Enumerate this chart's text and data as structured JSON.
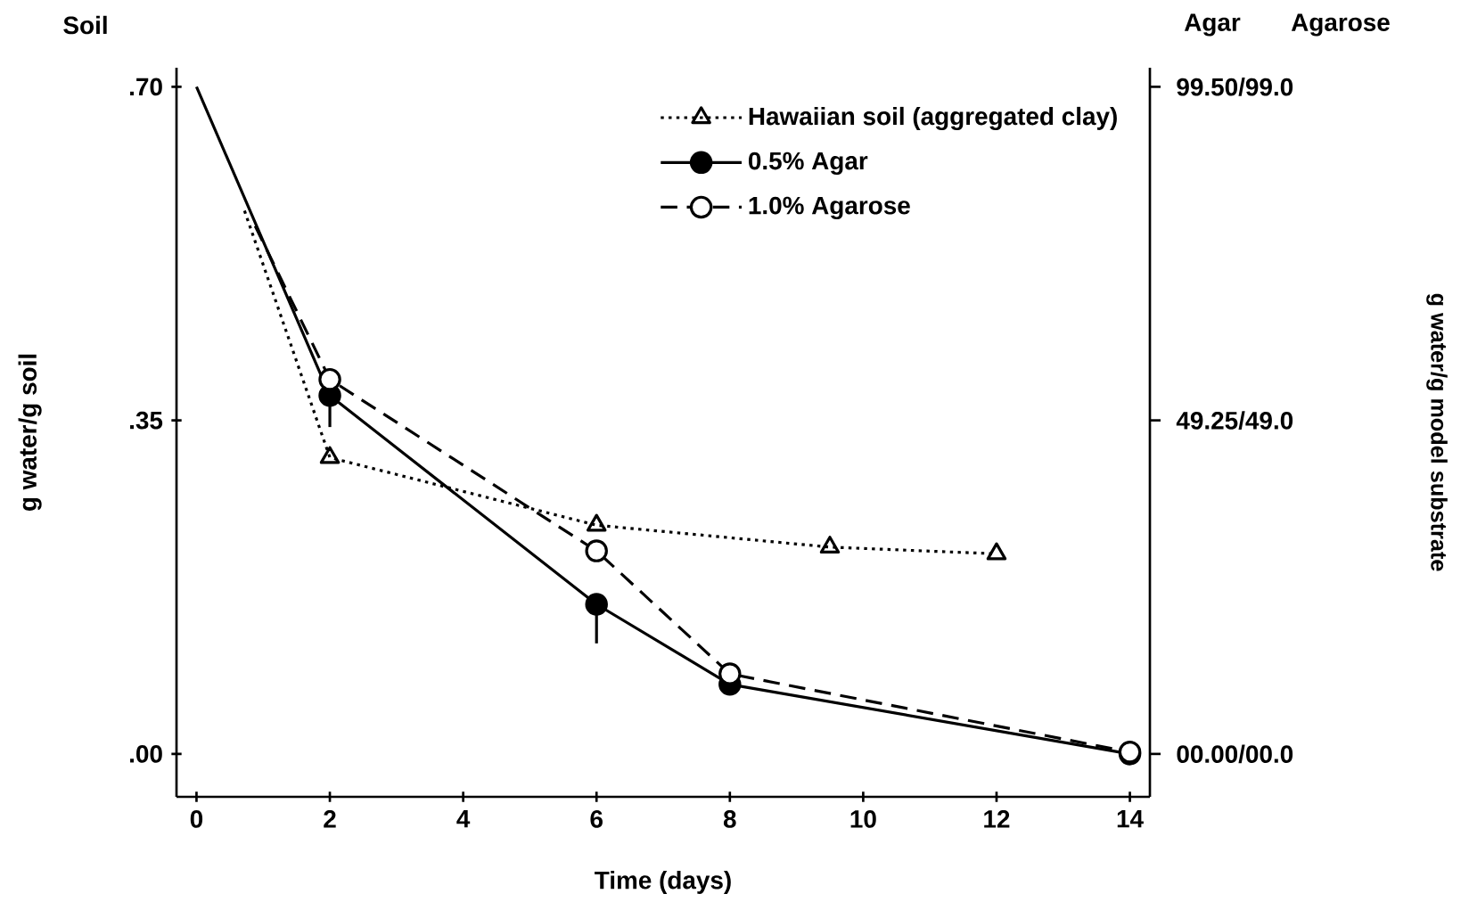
{
  "chart_data": {
    "type": "line",
    "xlabel": "Time (days)",
    "ylabel": "g water/g soil",
    "annotations": [
      "Soil",
      "Agar",
      "Agarose",
      "00.00/00.0",
      "49.25/49.0",
      "99.50/99.0",
      "g water/g model substrate"
    ],
    "xlim": [
      -0.3,
      14.3
    ],
    "xticks": [
      0,
      2,
      4,
      6,
      8,
      10,
      12,
      14
    ],
    "ylim": [
      -0.045,
      0.72
    ],
    "yticks": [
      {
        "value": 0,
        "label": ".00"
      },
      {
        "value": 0.35,
        "label": ".35"
      },
      {
        "value": 0.7,
        "label": ".70"
      }
    ],
    "legend": "top right",
    "series": [
      {
        "name": "Hawaiian soil (aggregated clay)",
        "color": "#000000",
        "marker": "triangle",
        "line_style": "dotted",
        "x": [
          0.72,
          2,
          6,
          9.5,
          12
        ],
        "values": [
          0.57,
          0.311,
          0.24,
          0.217,
          0.21
        ]
      },
      {
        "name": "0.5% Agar",
        "color": "#000000",
        "marker": "circle",
        "line_style": "solid",
        "x": [
          0,
          2,
          6,
          8,
          14
        ],
        "values": [
          0.7,
          0.376,
          0.157,
          0.073,
          0.0
        ],
        "errors": [
          null,
          [
            0.343,
            0.376
          ],
          [
            0.116,
            0.157
          ],
          null,
          null
        ]
      },
      {
        "name": "1.0% Agarose",
        "color": "#000000",
        "marker": "circle",
        "line_style": "dashed",
        "x": [
          0.88,
          2,
          6,
          8,
          14
        ],
        "values": [
          0.554,
          0.393,
          0.213,
          0.084,
          0.002
        ]
      }
    ]
  }
}
